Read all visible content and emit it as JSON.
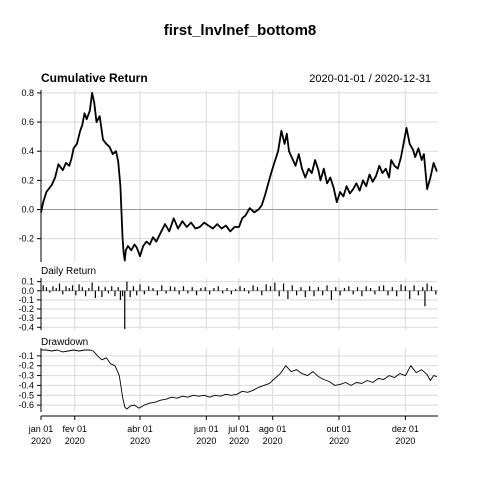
{
  "chart_data": {
    "type": "line",
    "title": "first_lnvlnef_bottom8",
    "date_range": "2020-01-01 / 2020-12-31",
    "x_ticks": [
      {
        "label": "jan 01",
        "year": "2020",
        "day": 0
      },
      {
        "label": "fev 01",
        "year": "2020",
        "day": 31
      },
      {
        "label": "abr 01",
        "year": "2020",
        "day": 91
      },
      {
        "label": "jun 01",
        "year": "2020",
        "day": 152
      },
      {
        "label": "jul 01",
        "year": "2020",
        "day": 182
      },
      {
        "label": "ago 01",
        "year": "2020",
        "day": 213
      },
      {
        "label": "out 01",
        "year": "2020",
        "day": 274
      },
      {
        "label": "dez 01",
        "year": "2020",
        "day": 335
      }
    ],
    "x_range": [
      0,
      365
    ],
    "panels": [
      {
        "title": "Cumulative Return",
        "ylim": [
          -0.36,
          0.82
        ],
        "y_ticks": [
          -0.2,
          0.0,
          0.2,
          0.4,
          0.6,
          0.8
        ],
        "y_tick_labels": [
          "-0.2",
          "0.0",
          "0.2",
          "0.4",
          "0.6",
          "0.8"
        ],
        "series": [
          {
            "x": [
              0,
              2,
              5,
              10,
              13,
              16,
              20,
              23,
              26,
              28,
              30,
              33,
              36,
              38,
              40,
              42,
              45,
              47,
              49,
              51,
              54,
              57,
              60,
              63,
              66,
              69,
              71,
              73,
              75,
              76,
              77,
              78,
              80,
              83,
              86,
              88,
              91,
              94,
              97,
              100,
              103,
              106,
              110,
              114,
              118,
              122,
              126,
              130,
              134,
              138,
              142,
              146,
              150,
              154,
              158,
              162,
              166,
              170,
              174,
              178,
              182,
              185,
              188,
              192,
              196,
              200,
              203,
              206,
              209,
              212,
              215,
              218,
              221,
              224,
              226,
              228,
              231,
              234,
              237,
              240,
              243,
              246,
              249,
              252,
              255,
              257,
              260,
              263,
              266,
              269,
              272,
              275,
              278,
              281,
              284,
              287,
              290,
              293,
              296,
              299,
              302,
              305,
              308,
              311,
              314,
              317,
              320,
              322,
              325,
              328,
              331,
              333,
              336,
              339,
              342,
              344,
              347,
              350,
              352,
              355,
              358,
              361,
              364
            ],
            "y": [
              -0.02,
              0.05,
              0.12,
              0.17,
              0.22,
              0.31,
              0.27,
              0.32,
              0.3,
              0.35,
              0.42,
              0.45,
              0.54,
              0.58,
              0.66,
              0.62,
              0.68,
              0.8,
              0.73,
              0.6,
              0.64,
              0.48,
              0.45,
              0.43,
              0.38,
              0.4,
              0.33,
              0.16,
              -0.2,
              -0.3,
              -0.35,
              -0.28,
              -0.25,
              -0.28,
              -0.24,
              -0.26,
              -0.32,
              -0.25,
              -0.22,
              -0.24,
              -0.19,
              -0.22,
              -0.16,
              -0.1,
              -0.15,
              -0.06,
              -0.13,
              -0.08,
              -0.12,
              -0.09,
              -0.13,
              -0.12,
              -0.09,
              -0.11,
              -0.13,
              -0.1,
              -0.13,
              -0.11,
              -0.15,
              -0.12,
              -0.12,
              -0.06,
              -0.04,
              0.01,
              -0.02,
              0.0,
              0.03,
              0.1,
              0.18,
              0.26,
              0.33,
              0.4,
              0.54,
              0.45,
              0.52,
              0.4,
              0.35,
              0.3,
              0.38,
              0.28,
              0.22,
              0.28,
              0.25,
              0.34,
              0.27,
              0.2,
              0.28,
              0.18,
              0.22,
              0.15,
              0.05,
              0.12,
              0.09,
              0.16,
              0.11,
              0.14,
              0.18,
              0.13,
              0.2,
              0.16,
              0.24,
              0.19,
              0.23,
              0.3,
              0.25,
              0.28,
              0.22,
              0.34,
              0.3,
              0.28,
              0.36,
              0.44,
              0.56,
              0.45,
              0.41,
              0.36,
              0.42,
              0.34,
              0.38,
              0.14,
              0.22,
              0.32,
              0.26
            ]
          }
        ]
      },
      {
        "title": "Daily Return",
        "ylim": [
          -0.43,
          0.14
        ],
        "y_ticks": [
          -0.4,
          -0.3,
          -0.2,
          -0.1,
          0.0,
          0.1
        ],
        "y_tick_labels": [
          "-0.4",
          "-0.3",
          "-0.2",
          "-0.1",
          "0.0",
          "0.1"
        ],
        "series": [
          {
            "x": [
              2,
              5,
              8,
              11,
              14,
              17,
              20,
              23,
              26,
              29,
              32,
              35,
              38,
              41,
              44,
              47,
              50,
              53,
              56,
              59,
              62,
              65,
              68,
              71,
              73,
              75,
              77,
              79,
              82,
              85,
              88,
              91,
              95,
              99,
              103,
              107,
              111,
              115,
              119,
              123,
              127,
              131,
              135,
              139,
              143,
              147,
              151,
              155,
              159,
              163,
              167,
              171,
              175,
              179,
              183,
              187,
              191,
              195,
              199,
              203,
              207,
              211,
              215,
              219,
              223,
              227,
              231,
              235,
              239,
              243,
              247,
              251,
              255,
              259,
              263,
              267,
              271,
              275,
              279,
              283,
              287,
              291,
              295,
              299,
              303,
              307,
              311,
              315,
              319,
              323,
              327,
              331,
              335,
              339,
              343,
              347,
              351,
              353,
              355,
              359,
              363
            ],
            "y": [
              0.06,
              0.04,
              -0.02,
              0.05,
              0.03,
              0.08,
              -0.04,
              0.05,
              0.03,
              0.06,
              -0.05,
              0.07,
              0.04,
              -0.06,
              0.03,
              0.09,
              -0.08,
              0.05,
              -0.07,
              0.04,
              -0.03,
              0.05,
              -0.06,
              0.04,
              -0.1,
              -0.06,
              -0.42,
              0.1,
              -0.07,
              0.05,
              -0.05,
              0.07,
              -0.04,
              0.05,
              0.03,
              -0.05,
              0.06,
              -0.03,
              0.05,
              0.04,
              -0.04,
              0.05,
              -0.03,
              0.04,
              -0.05,
              0.03,
              0.04,
              -0.04,
              0.03,
              0.05,
              -0.03,
              0.03,
              -0.04,
              0.02,
              0.05,
              0.03,
              -0.03,
              0.06,
              0.04,
              -0.05,
              0.07,
              0.05,
              0.09,
              -0.06,
              0.08,
              -0.09,
              0.06,
              -0.05,
              0.04,
              -0.07,
              0.05,
              -0.06,
              0.04,
              -0.05,
              0.06,
              -0.1,
              0.04,
              -0.05,
              0.03,
              0.05,
              -0.04,
              0.04,
              -0.06,
              0.05,
              0.03,
              -0.04,
              0.05,
              0.06,
              -0.05,
              0.04,
              -0.06,
              0.07,
              0.05,
              -0.09,
              0.06,
              -0.05,
              0.04,
              -0.17,
              0.08,
              0.05,
              -0.04
            ]
          }
        ]
      },
      {
        "title": "Drawdown",
        "ylim": [
          -0.67,
          -0.02
        ],
        "y_ticks": [
          -0.6,
          -0.5,
          -0.4,
          -0.3,
          -0.2,
          -0.1
        ],
        "y_tick_labels": [
          "-0.6",
          "-0.5",
          "-0.4",
          "-0.3",
          "-0.2",
          "-0.1"
        ],
        "series": [
          {
            "x": [
              0,
              5,
              10,
              15,
              20,
              25,
              30,
              35,
              40,
              45,
              48,
              52,
              56,
              60,
              64,
              68,
              72,
              75,
              77,
              79,
              82,
              86,
              90,
              95,
              100,
              105,
              110,
              115,
              120,
              125,
              130,
              135,
              140,
              145,
              150,
              155,
              160,
              165,
              170,
              175,
              180,
              185,
              190,
              195,
              200,
              205,
              210,
              215,
              220,
              225,
              230,
              235,
              240,
              245,
              250,
              255,
              260,
              265,
              270,
              275,
              280,
              285,
              290,
              295,
              300,
              305,
              310,
              315,
              320,
              325,
              330,
              335,
              340,
              345,
              350,
              355,
              358,
              361,
              364
            ],
            "y": [
              -0.04,
              -0.04,
              -0.05,
              -0.04,
              -0.06,
              -0.05,
              -0.04,
              -0.05,
              -0.04,
              -0.04,
              -0.05,
              -0.1,
              -0.14,
              -0.12,
              -0.18,
              -0.2,
              -0.3,
              -0.52,
              -0.62,
              -0.64,
              -0.61,
              -0.6,
              -0.63,
              -0.6,
              -0.58,
              -0.57,
              -0.55,
              -0.54,
              -0.52,
              -0.53,
              -0.51,
              -0.52,
              -0.5,
              -0.51,
              -0.5,
              -0.52,
              -0.5,
              -0.51,
              -0.49,
              -0.5,
              -0.49,
              -0.46,
              -0.47,
              -0.45,
              -0.42,
              -0.4,
              -0.38,
              -0.33,
              -0.28,
              -0.2,
              -0.26,
              -0.24,
              -0.28,
              -0.3,
              -0.26,
              -0.31,
              -0.34,
              -0.36,
              -0.4,
              -0.39,
              -0.37,
              -0.4,
              -0.37,
              -0.38,
              -0.35,
              -0.37,
              -0.33,
              -0.34,
              -0.3,
              -0.32,
              -0.28,
              -0.3,
              -0.2,
              -0.27,
              -0.24,
              -0.29,
              -0.35,
              -0.3,
              -0.31
            ]
          }
        ]
      }
    ]
  }
}
